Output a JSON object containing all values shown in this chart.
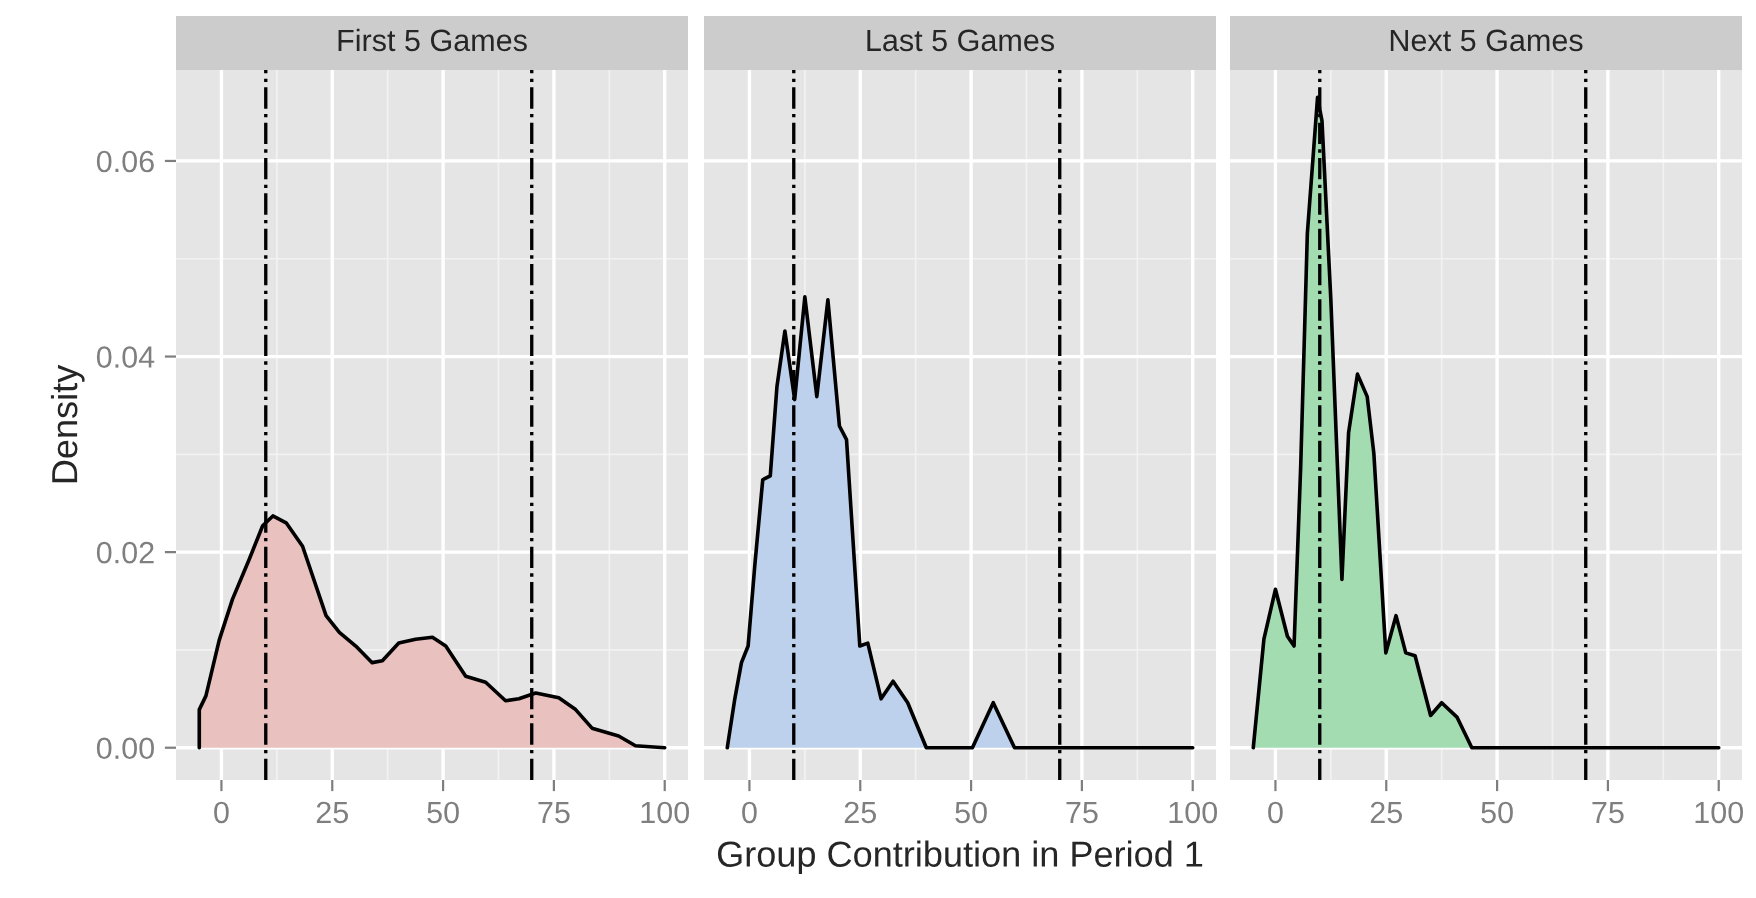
{
  "chart_data": [
    {
      "type": "area",
      "title": "First 5 Games",
      "ylabel": "Density",
      "grid": true,
      "xlim": [
        -10.25,
        105.25
      ],
      "ylim": [
        -0.0033,
        0.0693
      ],
      "xticks": [
        0,
        25,
        50,
        75,
        100
      ],
      "yticks": [
        {
          "value": 0,
          "label": "0.00"
        },
        {
          "value": 0.02,
          "label": "0.02"
        },
        {
          "value": 0.04,
          "label": "0.04"
        },
        {
          "value": 0.06,
          "label": "0.06"
        }
      ],
      "x": [
        -5,
        -5,
        -3.5,
        -0.5,
        2.5,
        6.3,
        9.3,
        11.6,
        14.6,
        18.3,
        23.6,
        26.6,
        30.3,
        34,
        36.3,
        40,
        43.8,
        47.6,
        50.6,
        55.1,
        59.6,
        64.1,
        67.1,
        70.9,
        76.1,
        79.9,
        83.6,
        89.6,
        93.4,
        100
      ],
      "series": [
        {
          "color": "#e9c1bf",
          "values": [
            0,
            0.0039,
            0.0053,
            0.011,
            0.0152,
            0.0193,
            0.0227,
            0.0237,
            0.023,
            0.0206,
            0.0135,
            0.0118,
            0.0104,
            0.0087,
            0.0089,
            0.0107,
            0.0111,
            0.0113,
            0.0104,
            0.0073,
            0.0067,
            0.0048,
            0.005,
            0.0056,
            0.0051,
            0.0039,
            0.002,
            0.0012,
            0.0002,
            0
          ]
        }
      ],
      "ref_lines": [
        {
          "axis": "x",
          "value": 10,
          "line_style": "dashdot"
        },
        {
          "axis": "x",
          "value": 70,
          "line_style": "dashdot"
        }
      ]
    },
    {
      "type": "area",
      "title": "Last 5 Games",
      "xlabel": "Group Contribution in Period 1",
      "grid": true,
      "tick_labels": "x",
      "xlim": [
        -10.25,
        105.25
      ],
      "ylim": [
        -0.0033,
        0.0693
      ],
      "xticks": [
        0,
        25,
        50,
        75,
        100
      ],
      "yticks": [
        {
          "value": 0,
          "label": null
        },
        {
          "value": 0.02,
          "label": null
        },
        {
          "value": 0.04,
          "label": null
        },
        {
          "value": 0.06,
          "label": null
        }
      ],
      "x": [
        -5,
        -3.3,
        -1.8,
        -0.3,
        1.2,
        3,
        4.7,
        6.2,
        8,
        10.2,
        12.5,
        15.2,
        17.7,
        20.3,
        21.9,
        24.9,
        26.7,
        29.7,
        32.4,
        35.7,
        39.9,
        50.3,
        55,
        59.8,
        100
      ],
      "series": [
        {
          "color": "#bdd0ec",
          "values": [
            0,
            0.005,
            0.0087,
            0.0104,
            0.0186,
            0.0274,
            0.0278,
            0.0369,
            0.0426,
            0.0356,
            0.0461,
            0.0359,
            0.0458,
            0.0329,
            0.0315,
            0.0104,
            0.0107,
            0.005,
            0.0068,
            0.0046,
            0,
            0,
            0.0046,
            0,
            0
          ]
        }
      ],
      "ref_lines": [
        {
          "axis": "x",
          "value": 10,
          "line_style": "dashdot"
        },
        {
          "axis": "x",
          "value": 70,
          "line_style": "dashdot"
        }
      ]
    },
    {
      "type": "area",
      "title": "Next 5 Games",
      "grid": true,
      "tick_labels": "x",
      "xlim": [
        -10.25,
        105.25
      ],
      "ylim": [
        -0.0033,
        0.0693
      ],
      "xticks": [
        0,
        25,
        50,
        75,
        100
      ],
      "yticks": [
        {
          "value": 0,
          "label": null
        },
        {
          "value": 0.02,
          "label": null
        },
        {
          "value": 0.04,
          "label": null
        },
        {
          "value": 0.06,
          "label": null
        }
      ],
      "x": [
        -5,
        -2.6,
        0,
        2.7,
        4.2,
        5.7,
        7.2,
        9.5,
        10.5,
        12.5,
        15,
        16.5,
        18.5,
        20.7,
        22.2,
        24.9,
        27.2,
        29.4,
        31.5,
        35,
        37.5,
        41,
        44.3,
        100
      ],
      "series": [
        {
          "color": "#a4dcb2",
          "values": [
            0,
            0.0111,
            0.0162,
            0.0114,
            0.0104,
            0.0288,
            0.0526,
            0.0665,
            0.0641,
            0.0458,
            0.0172,
            0.0322,
            0.0382,
            0.0359,
            0.0301,
            0.0097,
            0.0135,
            0.0097,
            0.0094,
            0.0033,
            0.0046,
            0.0031,
            0,
            0
          ]
        }
      ],
      "ref_lines": [
        {
          "axis": "x",
          "value": 10,
          "line_style": "dashdot"
        },
        {
          "axis": "x",
          "value": 70,
          "line_style": "dashdot"
        }
      ]
    }
  ]
}
